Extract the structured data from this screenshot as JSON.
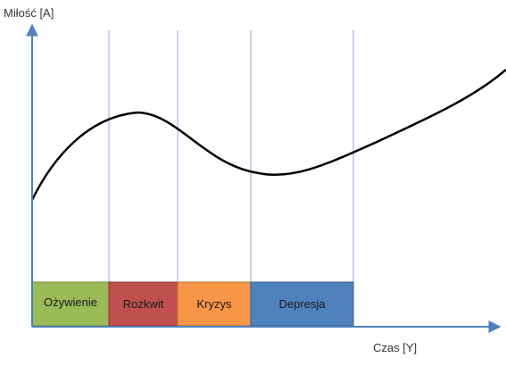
{
  "axes": {
    "y_label": "Miłość [A]",
    "x_label": "Czas [Y]"
  },
  "colors": {
    "axis": "#4f81bd",
    "divider": "#8eaad6",
    "curve": "#000000"
  },
  "phases": [
    {
      "label": "Ożywienie",
      "color": "#9bbb59"
    },
    {
      "label": "Rozkwit",
      "color": "#c0504d"
    },
    {
      "label": "Kryzys",
      "color": "#f79646"
    },
    {
      "label": "Depresja",
      "color": "#4f81bd"
    }
  ]
}
